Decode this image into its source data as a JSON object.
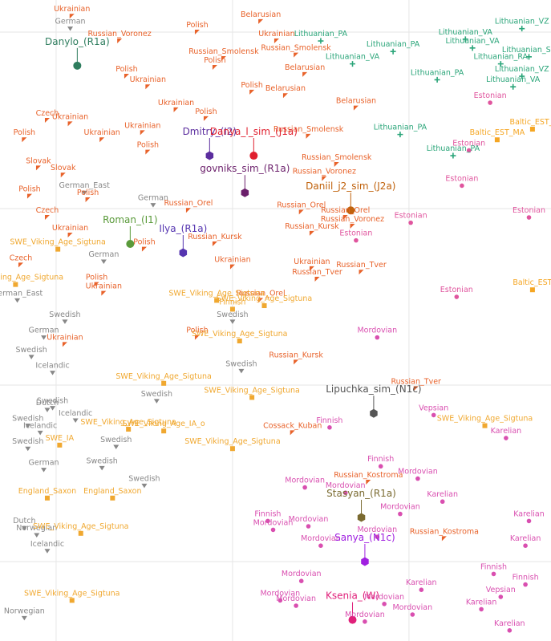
{
  "chart_data": {
    "type": "scatter",
    "grid": true,
    "xlim": [
      -3.18,
      28.05
    ],
    "ylim": [
      -24.5,
      11.82
    ],
    "xticks": [
      0,
      10,
      20
    ],
    "yticks": [
      10,
      0,
      -10,
      -20
    ],
    "series": [
      {
        "color": "#e8622a",
        "marker": "flag",
        "x": [
          0.9,
          8.0,
          3.6,
          11.6,
          4.0,
          5.2,
          9.5,
          9.0,
          12.5,
          13.6,
          14.1,
          11.1,
          13.0,
          6.8,
          8.5,
          -0.5,
          0.8,
          -1.8,
          2.6,
          4.9,
          5.2,
          17.0,
          14.3,
          15.9,
          -1.0,
          0.4,
          -1.5,
          1.8,
          15.2,
          7.5,
          16.4,
          16.8,
          14.5,
          -0.5,
          0.8,
          5.0,
          9.0,
          10.0,
          14.5,
          14.8,
          17.3,
          2.3,
          2.7,
          11.6,
          8.0,
          0.5,
          13.6,
          20.4,
          13.4,
          17.7,
          22.0,
          13.9,
          -2.0
        ],
        "values": [
          10.9,
          10.0,
          9.5,
          10.6,
          7.5,
          6.9,
          8.5,
          8.0,
          9.5,
          8.7,
          7.6,
          6.6,
          6.4,
          5.6,
          5.1,
          5.0,
          4.8,
          3.9,
          3.9,
          4.3,
          3.2,
          5.7,
          4.1,
          2.5,
          2.3,
          1.9,
          0.7,
          0.5,
          1.7,
          -0.1,
          -0.5,
          -1.0,
          -1.4,
          -0.5,
          -1.5,
          -2.3,
          -2.0,
          -3.3,
          -3.4,
          -4.0,
          -3.6,
          -4.3,
          -4.8,
          -5.2,
          -7.3,
          -7.7,
          -8.7,
          -10.2,
          -12.7,
          -15.5,
          -18.7,
          -0.2,
          -3.2
        ],
        "labels": [
          "Ukrainian",
          "Polish",
          "Russian_Voronez",
          "Belarusian",
          "Polish",
          "Ukrainian",
          "Russian_Smolensk",
          "Polish",
          "Ukrainian",
          "Russian_Smolensk",
          "Belarusian",
          "Polish",
          "Belarusian",
          "Ukrainian",
          "Polish",
          "Czech",
          "Ukrainian",
          "Polish",
          "Ukrainian",
          "Ukrainian",
          "Polish",
          "Belarusian",
          "Russian_Smolensk",
          "Russian_Smolensk",
          "Slovak",
          "Slovak",
          "Polish",
          "Polish",
          "Russian_Voronez",
          "Russian_Orel",
          "Russian_Orel",
          "Russian_Voronez",
          "Russian_Kursk",
          "Czech",
          "Ukrainian",
          "Polish",
          "Russian_Kursk",
          "Ukrainian",
          "Ukrainian",
          "Russian_Tver",
          "Russian_Tver",
          "Polish",
          "Ukrainian",
          "Russian_Orel",
          "Polish",
          "Ukrainian",
          "Russian_Kursk",
          "Russian_Tver",
          "Cossack_Kuban",
          "Russian_Kostroma",
          "Russian_Kostroma",
          "Russian_Orel",
          "Czech"
        ]
      },
      {
        "color": "#2aa579",
        "marker": "plus",
        "x": [
          15.0,
          23.2,
          26.4,
          19.1,
          16.8,
          25.2,
          26.4,
          21.6,
          25.9,
          19.5,
          22.5,
          26.8,
          23.6
        ],
        "values": [
          9.5,
          9.6,
          10.2,
          8.9,
          8.2,
          8.2,
          7.5,
          7.3,
          6.9,
          4.2,
          3.0,
          8.6,
          9.1
        ],
        "labels": [
          "Lithuanian_PA",
          "Lithuanian_VA",
          "Lithuanian_VZ",
          "Lithuanian_PA",
          "Lithuanian_VA",
          "Lithuanian_RA",
          "Lithuanian_VZ",
          "Lithuanian_PA",
          "Lithuanian_VA",
          "Lithuanian_PA",
          "Lithuanian_PA",
          "Lithuanian_SZ",
          "Lithuanian_VA"
        ]
      },
      {
        "color": "#f5a623",
        "marker": "square",
        "x": [
          25.0,
          27.0,
          27.0
        ],
        "values": [
          3.9,
          -4.6,
          4.5
        ],
        "labels": [
          "Baltic_EST_MA",
          "Baltic_EST",
          "Baltic_EST_I"
        ]
      },
      {
        "color": "#e0559e",
        "marker": "circle",
        "x": [
          24.6,
          23.4,
          23.0,
          20.1,
          17.0,
          26.8,
          22.7
        ],
        "values": [
          6.0,
          3.3,
          1.3,
          -0.8,
          -1.8,
          -0.5,
          -5.0
        ],
        "labels": [
          "Estonian",
          "Estonian",
          "Estonian",
          "Estonian",
          "Estonian",
          "Estonian",
          "Estonian"
        ]
      },
      {
        "color": "#888888",
        "marker": "tri-down",
        "x": [
          0.8,
          5.5,
          2.7,
          0.5,
          -0.7,
          -0.2,
          10.0,
          10.5,
          5.7,
          -0.5,
          -0.2,
          1.1,
          -1.6,
          -0.9,
          -1.6,
          3.4,
          -0.7,
          2.6,
          5.0,
          -1.8,
          -1.1,
          -0.5,
          -1.8,
          1.6,
          -2.2,
          -1.4
        ],
        "values": [
          10.2,
          0.2,
          -3.0,
          -6.4,
          -7.3,
          -9.3,
          -6.4,
          -9.2,
          -10.9,
          -11.4,
          -11.3,
          -12.0,
          -12.3,
          -12.7,
          -13.6,
          -13.5,
          -14.8,
          -14.7,
          -15.7,
          -18.1,
          -18.5,
          -19.4,
          -23.2,
          0.9,
          -5.2,
          -8.4
        ],
        "labels": [
          "German",
          "German",
          "German",
          "Swedish",
          "German",
          "Icelandic",
          "Swedish",
          "Swedish",
          "Swedish",
          "Dutch",
          "Swedish",
          "Icelandic",
          "Swedish",
          "Icelandic",
          "Swedish",
          "Swedish",
          "German",
          "Swedish",
          "Swedish",
          "Dutch",
          "Norwegian",
          "Icelandic",
          "Norwegian",
          "German_East",
          "German_East",
          "Swedish"
        ]
      },
      {
        "color": "#f0a830",
        "marker": "square",
        "x": [
          0.1,
          -2.3,
          9.1,
          11.8,
          10.4,
          6.1,
          11.1,
          4.1,
          6.1,
          10.0,
          24.3,
          0.2,
          -0.5,
          3.2,
          1.4,
          0.9,
          10.0
        ],
        "values": [
          -2.3,
          -4.3,
          -5.2,
          -5.5,
          -7.5,
          -9.9,
          -10.7,
          -12.5,
          -12.6,
          -13.6,
          -12.3,
          -13.4,
          -16.4,
          -16.4,
          -18.4,
          -22.2,
          -5.7
        ],
        "labels": [
          "SWE_Viking_Age_Sigtuna",
          "SWE_Viking_Age_Sigtuna",
          "SWE_Viking_Age_Sigtuna",
          "SWE_Viking_Age_Sigtuna",
          "SWE_Viking_Age_Sigtuna",
          "SWE_Viking_Age_Sigtuna",
          "SWE_Viking_Age_Sigtuna",
          "SWE_Viking_Age_Sigtuna",
          "SWE_Viking_Age_IA_o",
          "SWE_Viking_Age_Sigtuna",
          "SWE_Viking_Age_Sigtuna",
          "SWE_IA",
          "England_Saxon",
          "England_Saxon",
          "SWE_Viking_Age_Sigtuna",
          "SWE_Viking_Age_Sigtuna",
          "Finnish"
        ]
      },
      {
        "color": "#d94fb0",
        "marker": "circle",
        "x": [
          18.2,
          21.4,
          15.5,
          25.5,
          18.4,
          14.1,
          16.4,
          20.5,
          21.9,
          19.5,
          12.0,
          12.3,
          14.3,
          18.2,
          15.0,
          26.6,
          24.8,
          25.2,
          26.6,
          20.7,
          13.9,
          18.6,
          13.6,
          20.2,
          24.1,
          25.7,
          17.5,
          12.7,
          26.8
        ],
        "values": [
          -7.3,
          -11.7,
          -12.4,
          -13.0,
          -14.6,
          -15.8,
          -16.1,
          -15.3,
          -16.6,
          -17.3,
          -17.7,
          -18.2,
          -18.0,
          -18.6,
          -19.1,
          -19.1,
          -20.7,
          -22.0,
          -21.3,
          -21.6,
          -21.1,
          -22.4,
          -22.5,
          -23.0,
          -22.7,
          -23.9,
          -23.4,
          -22.2,
          -17.7
        ],
        "labels": [
          "Mordovian",
          "Vepsian",
          "Finnish",
          "Karelian",
          "Finnish",
          "Mordovian",
          "Mordovian",
          "Mordovian",
          "Karelian",
          "Mordovian",
          "Finnish",
          "Mordovian",
          "Mordovian",
          "Mordovian",
          "Mordovian",
          "Karelian",
          "Finnish",
          "Vepsian",
          "Finnish",
          "Karelian",
          "Mordovian",
          "Mordovian",
          "Mordovian",
          "Mordovian",
          "Karelian",
          "Karelian",
          "Mordovian",
          "Mordovian",
          "Karelian"
        ]
      },
      {
        "color": "#2e7d5e",
        "marker": "circle",
        "highlight": true,
        "x": [
          1.2
        ],
        "values": [
          8.1
        ],
        "labels": [
          "Danylo_(R1a)"
        ]
      },
      {
        "color": "#5b2d9e",
        "marker": "hexagon",
        "highlight": true,
        "x": [
          8.7
        ],
        "values": [
          3.0
        ],
        "labels": [
          "Dmitry_(I2)"
        ]
      },
      {
        "color": "#e0202f",
        "marker": "circle",
        "highlight": true,
        "x": [
          11.2
        ],
        "values": [
          3.0
        ],
        "labels": [
          "Danya_l_sim_(J1a)"
        ]
      },
      {
        "color": "#6b1f6b",
        "marker": "hexagon",
        "highlight": true,
        "x": [
          10.7
        ],
        "values": [
          0.9
        ],
        "labels": [
          "govniks_sim_(R1a)"
        ]
      },
      {
        "color": "#c0620c",
        "marker": "circle",
        "highlight": true,
        "x": [
          16.7
        ],
        "values": [
          -0.1
        ],
        "labels": [
          "Daniil_j2_sim_(J2a)"
        ]
      },
      {
        "color": "#5a9a3a",
        "marker": "circle",
        "highlight": true,
        "x": [
          4.2
        ],
        "values": [
          -2.0
        ],
        "labels": [
          "Roman_(I1)"
        ]
      },
      {
        "color": "#5535b0",
        "marker": "hexagon",
        "highlight": true,
        "x": [
          7.2
        ],
        "values": [
          -2.5
        ],
        "labels": [
          "Ilya_(R1a)"
        ]
      },
      {
        "color": "#555555",
        "marker": "hexagon",
        "highlight": true,
        "x": [
          18.0
        ],
        "values": [
          -11.6
        ],
        "labels": [
          "Lipuchka_sim_(N1c)"
        ]
      },
      {
        "color": "#7a6a30",
        "marker": "hexagon",
        "highlight": true,
        "x": [
          17.3
        ],
        "values": [
          -17.5
        ],
        "labels": [
          "Stasyan_(R1a)"
        ]
      },
      {
        "color": "#a020e0",
        "marker": "hexagon",
        "highlight": true,
        "x": [
          17.5
        ],
        "values": [
          -20.0
        ],
        "labels": [
          "Sanya_(N1c)"
        ]
      },
      {
        "color": "#e0207a",
        "marker": "circle",
        "highlight": true,
        "x": [
          16.8
        ],
        "values": [
          -23.3
        ],
        "labels": [
          "Ksenia_(W)"
        ]
      }
    ]
  }
}
